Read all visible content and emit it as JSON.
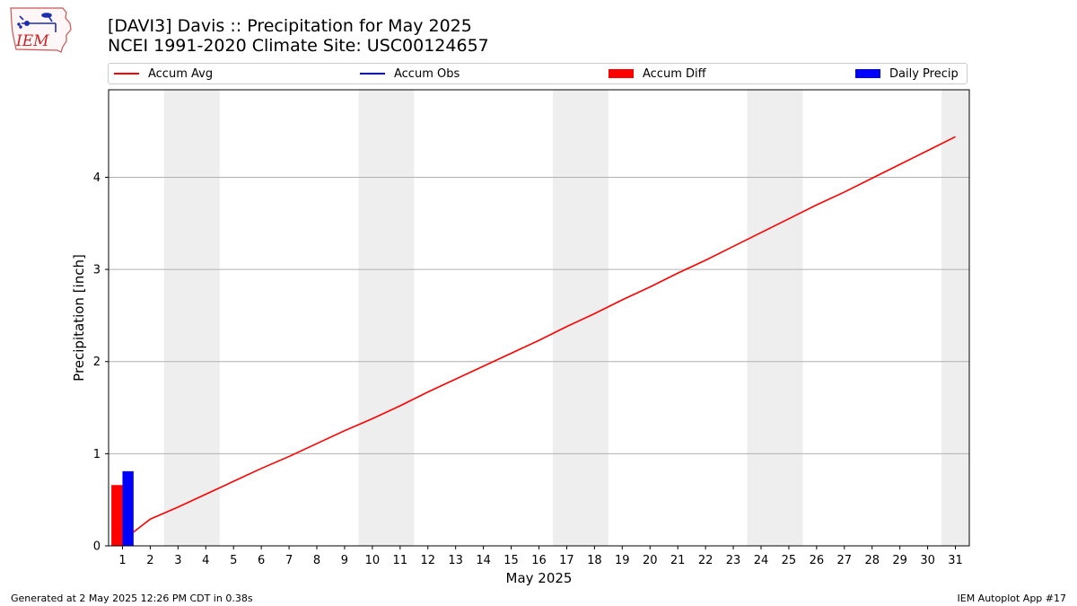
{
  "logo": {
    "text": "IEM"
  },
  "title": {
    "line1": "[DAVI3] Davis :: Precipitation for May 2025",
    "line2": "NCEI 1991-2020 Climate Site: USC00124657"
  },
  "legend": {
    "items": [
      {
        "label": "Accum Avg",
        "kind": "line",
        "color": "#ff0000"
      },
      {
        "label": "Accum Obs",
        "kind": "line",
        "color": "#0000ff"
      },
      {
        "label": "Accum Diff",
        "kind": "box",
        "color": "#ff0000"
      },
      {
        "label": "Daily Precip",
        "kind": "box",
        "color": "#0000ff"
      }
    ]
  },
  "chart_data": {
    "type": "bar",
    "xlabel": "May 2025",
    "ylabel": "Precipitation [inch]",
    "xlim": [
      0.5,
      31.5
    ],
    "ylim": [
      0,
      4.95
    ],
    "x_ticks": [
      1,
      2,
      3,
      4,
      5,
      6,
      7,
      8,
      9,
      10,
      11,
      12,
      13,
      14,
      15,
      16,
      17,
      18,
      19,
      20,
      21,
      22,
      23,
      24,
      25,
      26,
      27,
      28,
      29,
      30,
      31
    ],
    "y_ticks": [
      0,
      1,
      2,
      3,
      4
    ],
    "grid": "horizontal",
    "weekend_shading": [
      [
        2.5,
        4.5
      ],
      [
        9.5,
        11.5
      ],
      [
        16.5,
        18.5
      ],
      [
        23.5,
        25.5
      ],
      [
        30.5,
        31.5
      ]
    ],
    "shading_color": "#eeeeee",
    "legend_position": "top",
    "series": [
      {
        "name": "Accum Avg",
        "kind": "line",
        "color": "#ff0000",
        "x": [
          1,
          2,
          3,
          4,
          5,
          6,
          7,
          8,
          9,
          10,
          11,
          12,
          13,
          14,
          15,
          16,
          17,
          18,
          19,
          20,
          21,
          22,
          23,
          24,
          25,
          26,
          27,
          28,
          29,
          30,
          31
        ],
        "values": [
          0.15,
          0.29,
          0.42,
          0.56,
          0.7,
          0.84,
          0.97,
          1.11,
          1.25,
          1.38,
          1.52,
          1.67,
          1.81,
          1.95,
          2.09,
          2.23,
          2.38,
          2.52,
          2.67,
          2.81,
          2.96,
          3.1,
          3.25,
          3.4,
          3.55,
          3.7,
          3.84,
          3.99,
          4.14,
          4.29,
          4.44
        ]
      },
      {
        "name": "Accum Obs",
        "kind": "line",
        "color": "#0000ff",
        "x": [],
        "values": []
      },
      {
        "name": "Accum Diff",
        "kind": "bar",
        "color": "#ff0000",
        "x": [
          1
        ],
        "values": [
          0.66
        ]
      },
      {
        "name": "Daily Precip",
        "kind": "bar",
        "color": "#0000ff",
        "x": [
          1
        ],
        "values": [
          0.81
        ]
      }
    ]
  },
  "footer": {
    "left": "Generated at 2 May 2025 12:26 PM CDT in 0.38s",
    "right": "IEM Autoplot App #17"
  }
}
